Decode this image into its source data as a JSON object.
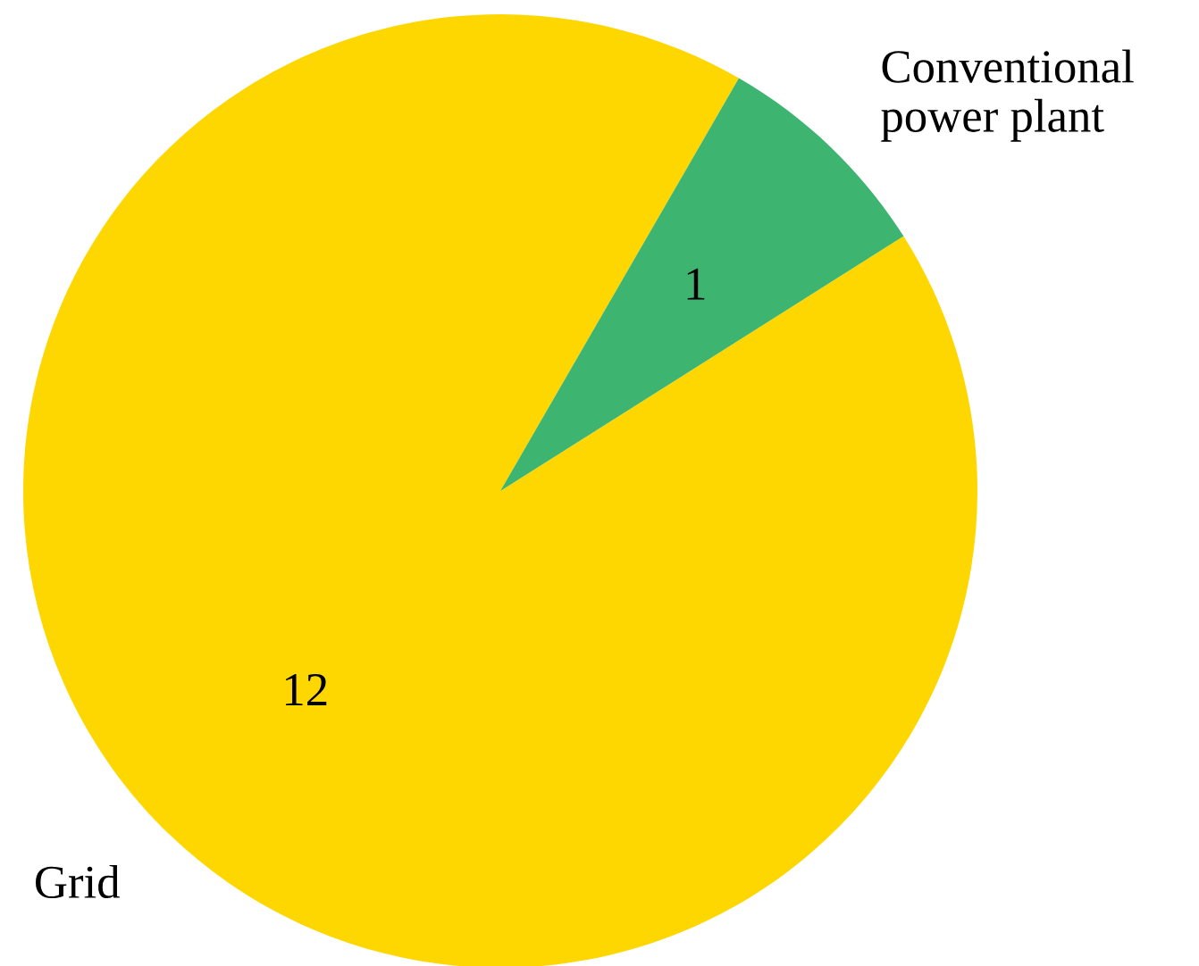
{
  "chart_data": {
    "type": "pie",
    "categories": [
      "Grid",
      "Conventional\npower plant"
    ],
    "values": [
      12,
      1
    ],
    "colors": [
      "#fed600",
      "#3db470"
    ],
    "data_labels": true,
    "legend": false
  }
}
